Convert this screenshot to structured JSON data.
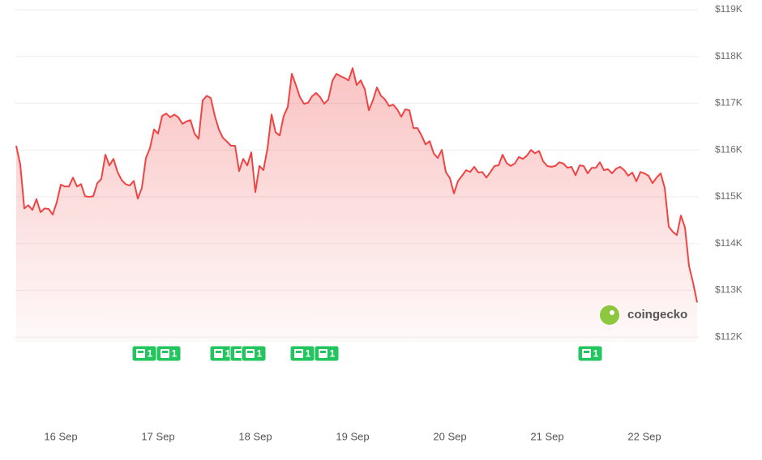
{
  "chart_data": {
    "type": "area",
    "color": "#ef4444",
    "x": [
      -11,
      -10,
      -9,
      -8,
      -7,
      -6,
      -5,
      -4,
      -3,
      -2,
      -1,
      0,
      1,
      2,
      3,
      4,
      5,
      6,
      7,
      8,
      9,
      10,
      11,
      12,
      13,
      14,
      15,
      16,
      17,
      18,
      19,
      20,
      21,
      22,
      23,
      24,
      25,
      26,
      27,
      28,
      29,
      30,
      31,
      32,
      33,
      34,
      35,
      36,
      37,
      38,
      39,
      40,
      41,
      42,
      43,
      44,
      45,
      46,
      47,
      48,
      49,
      50,
      51,
      52,
      53,
      54,
      55,
      56,
      57,
      58,
      59,
      60,
      61,
      62,
      63,
      64,
      65,
      66,
      67,
      68,
      69,
      70,
      71,
      72,
      73,
      74,
      75,
      76,
      77,
      78,
      79,
      80,
      81,
      82,
      83,
      84,
      85,
      86,
      87,
      88,
      89,
      90,
      91,
      92,
      93,
      94,
      95,
      96,
      97,
      98,
      99,
      100,
      101,
      102,
      103,
      104,
      105,
      106,
      107,
      108,
      109,
      110,
      111,
      112,
      113,
      114,
      115,
      116,
      117,
      118,
      119,
      120,
      121,
      122,
      123,
      124,
      125,
      126,
      127,
      128,
      129,
      130,
      131,
      132,
      133,
      134,
      135,
      136,
      137,
      138,
      139,
      140,
      141,
      142,
      143,
      144,
      145,
      146,
      147,
      148,
      149,
      150,
      151,
      152,
      153,
      154,
      155,
      156,
      157
    ],
    "values": [
      116090,
      115690,
      114750,
      114820,
      114720,
      114950,
      114670,
      114750,
      114740,
      114620,
      114880,
      115260,
      115220,
      115220,
      115410,
      115220,
      115270,
      115010,
      115000,
      115010,
      115290,
      115380,
      115900,
      115670,
      115810,
      115530,
      115360,
      115270,
      115240,
      115340,
      114960,
      115190,
      115830,
      116040,
      116440,
      116350,
      116730,
      116780,
      116700,
      116760,
      116700,
      116560,
      116610,
      116640,
      116350,
      116240,
      117060,
      117160,
      117110,
      116730,
      116440,
      116260,
      116180,
      116090,
      116090,
      115550,
      115810,
      115670,
      115950,
      115100,
      115660,
      115570,
      116040,
      116760,
      116380,
      116310,
      116730,
      116920,
      117630,
      117390,
      117130,
      116990,
      117010,
      117150,
      117220,
      117130,
      116990,
      117080,
      117480,
      117630,
      117580,
      117540,
      117490,
      117750,
      117390,
      117490,
      117300,
      116850,
      117060,
      117340,
      117160,
      117080,
      116940,
      116970,
      116870,
      116710,
      116870,
      116850,
      116470,
      116470,
      116310,
      116120,
      116190,
      115930,
      115830,
      116000,
      115530,
      115400,
      115070,
      115340,
      115450,
      115570,
      115530,
      115640,
      115520,
      115530,
      115410,
      115530,
      115660,
      115670,
      115900,
      115720,
      115660,
      115710,
      115850,
      115810,
      115880,
      116000,
      115930,
      115980,
      115760,
      115660,
      115640,
      115660,
      115740,
      115710,
      115620,
      115640,
      115460,
      115670,
      115660,
      115500,
      115620,
      115620,
      115740,
      115570,
      115590,
      115500,
      115600,
      115640,
      115570,
      115450,
      115520,
      115330,
      115530,
      115500,
      115450,
      115290,
      115410,
      115500,
      115190,
      114360,
      114250,
      114180,
      114600,
      114340,
      113520,
      113160,
      112740
    ],
    "xlim": [
      -11.4,
      157.4
    ],
    "xticks": [
      {
        "value": 0,
        "label": "16 Sep"
      },
      {
        "value": 24,
        "label": "17 Sep"
      },
      {
        "value": 48,
        "label": "18 Sep"
      },
      {
        "value": 72,
        "label": "19 Sep"
      },
      {
        "value": 96,
        "label": "20 Sep"
      },
      {
        "value": 120,
        "label": "21 Sep"
      },
      {
        "value": 144,
        "label": "22 Sep"
      }
    ],
    "ylim": [
      111900,
      119000
    ],
    "yticks": [
      {
        "value": 112000,
        "label": "$112K"
      },
      {
        "value": 113000,
        "label": "$113K"
      },
      {
        "value": 114000,
        "label": "$114K"
      },
      {
        "value": 115000,
        "label": "$115K"
      },
      {
        "value": 116000,
        "label": "$116K"
      },
      {
        "value": 117000,
        "label": "$117K"
      },
      {
        "value": 118000,
        "label": "$118K"
      },
      {
        "value": 119000,
        "label": "$119K"
      }
    ],
    "grid": true,
    "news": [
      {
        "x": 20.6,
        "label": "1"
      },
      {
        "x": 26.6,
        "label": "1"
      },
      {
        "x": 39.8,
        "label": "1"
      },
      {
        "x": 44.8,
        "label": "1"
      },
      {
        "x": 47.6,
        "label": "1"
      },
      {
        "x": 59.6,
        "label": "1"
      },
      {
        "x": 65.6,
        "label": "1"
      },
      {
        "x": 130.6,
        "label": "1"
      }
    ],
    "watermark": "coingecko"
  }
}
